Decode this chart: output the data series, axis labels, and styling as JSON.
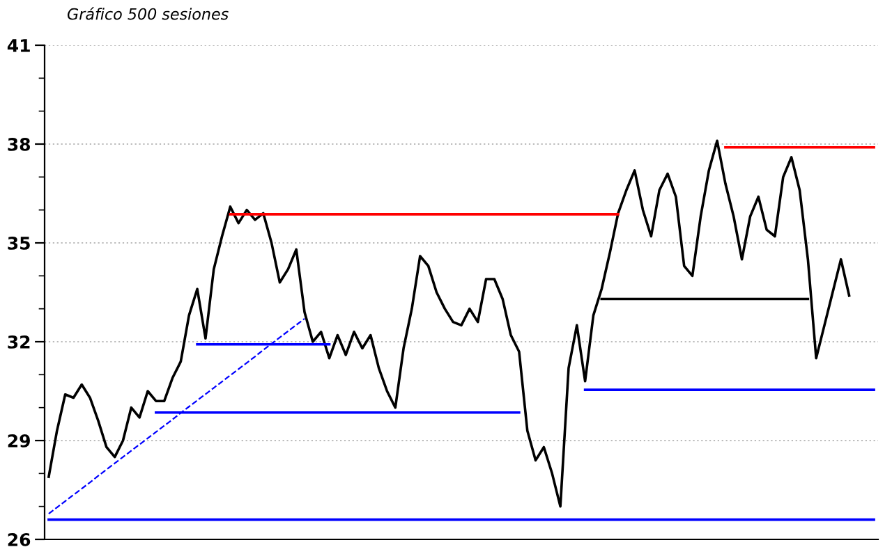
{
  "chart_data": {
    "type": "line",
    "title": "Gráfico 500 sesiones",
    "categories": [
      null,
      null,
      null,
      null,
      null,
      null,
      null,
      null,
      null,
      null,
      null,
      null,
      null,
      null,
      null,
      null,
      null,
      null,
      null,
      null,
      null,
      null,
      null,
      null,
      null,
      null,
      null,
      null,
      null,
      null,
      null,
      null,
      null,
      null,
      null,
      null,
      null,
      null,
      null,
      null,
      null,
      null,
      null,
      null,
      null,
      null,
      null,
      null,
      null,
      null,
      null,
      null,
      null,
      null,
      null,
      null,
      null,
      null,
      null,
      null,
      null,
      null,
      null,
      null,
      null,
      null,
      null,
      null,
      null,
      null,
      null,
      null,
      null,
      null,
      null,
      null,
      null,
      null,
      null,
      null,
      null,
      null,
      null,
      null,
      null,
      null,
      null,
      null,
      null,
      null,
      null,
      null,
      null,
      null,
      null,
      null,
      null,
      null,
      null,
      null,
      null
    ],
    "series": [
      {
        "color": "#000000",
        "values": [
          27.9,
          29.3,
          30.4,
          30.3,
          30.7,
          30.3,
          29.6,
          28.8,
          28.5,
          29.0,
          30.0,
          29.7,
          30.5,
          30.2,
          30.2,
          30.9,
          31.4,
          32.8,
          33.6,
          32.1,
          34.2,
          35.2,
          36.1,
          35.6,
          36.0,
          35.7,
          35.9,
          35.0,
          33.8,
          34.2,
          34.8,
          32.9,
          32.0,
          32.3,
          31.5,
          32.2,
          31.6,
          32.3,
          31.8,
          32.2,
          31.2,
          30.5,
          30.0,
          31.8,
          33.0,
          34.6,
          34.3,
          33.5,
          33.0,
          32.6,
          32.5,
          33.0,
          32.6,
          33.9,
          33.9,
          33.3,
          32.2,
          31.7,
          29.3,
          28.4,
          28.8,
          28.0,
          27.0,
          31.2,
          32.5,
          30.8,
          32.8,
          33.6,
          34.7,
          35.9,
          36.6,
          37.2,
          36.0,
          35.2,
          36.6,
          37.1,
          36.4,
          34.3,
          34.0,
          35.8,
          37.2,
          38.1,
          36.8,
          35.8,
          34.5,
          35.8,
          36.4,
          35.4,
          35.2,
          37.0,
          37.6,
          36.6,
          34.5,
          31.5,
          32.5,
          33.5,
          34.5,
          33.4,
          null,
          null,
          null
        ]
      },
      {
        "color": "#ff0000",
        "values": [
          null,
          null,
          null,
          null,
          null,
          null,
          null,
          null,
          null,
          null,
          null,
          null,
          null,
          null,
          null,
          null,
          null,
          null,
          null,
          null,
          null,
          null,
          35.87,
          35.87,
          35.87,
          35.87,
          35.87,
          35.87,
          35.87,
          35.87,
          35.87,
          35.87,
          35.87,
          35.87,
          35.87,
          35.87,
          35.87,
          35.87,
          35.87,
          35.87,
          35.87,
          35.87,
          35.87,
          35.87,
          35.87,
          35.87,
          35.87,
          35.87,
          35.87,
          35.87,
          35.87,
          35.87,
          35.87,
          35.87,
          35.87,
          35.87,
          35.87,
          35.87,
          35.87,
          35.87,
          35.87,
          35.87,
          35.87,
          35.87,
          35.87,
          35.87,
          35.87,
          35.87,
          35.87,
          35.87,
          null,
          null,
          null,
          null,
          null,
          null,
          null,
          null,
          null,
          null,
          null,
          null,
          null,
          null,
          null,
          null,
          null,
          null,
          null,
          null,
          null,
          null,
          null,
          null,
          null,
          null,
          null,
          null,
          null,
          null,
          null
        ]
      },
      {
        "color": "#ff0000",
        "values": [
          null,
          null,
          null,
          null,
          null,
          null,
          null,
          null,
          null,
          null,
          null,
          null,
          null,
          null,
          null,
          null,
          null,
          null,
          null,
          null,
          null,
          null,
          null,
          null,
          null,
          null,
          null,
          null,
          null,
          null,
          null,
          null,
          null,
          null,
          null,
          null,
          null,
          null,
          null,
          null,
          null,
          null,
          null,
          null,
          null,
          null,
          null,
          null,
          null,
          null,
          null,
          null,
          null,
          null,
          null,
          null,
          null,
          null,
          null,
          null,
          null,
          null,
          null,
          null,
          null,
          null,
          null,
          null,
          null,
          null,
          null,
          null,
          null,
          null,
          null,
          null,
          null,
          null,
          null,
          null,
          null,
          null,
          37.9,
          37.9,
          37.9,
          37.9,
          37.9,
          37.9,
          37.9,
          37.9,
          37.9,
          37.9,
          37.9,
          37.9,
          37.9,
          37.9,
          37.9,
          37.9,
          37.9,
          37.9,
          37.9
        ]
      },
      {
        "color": "#000000",
        "values": [
          null,
          null,
          null,
          null,
          null,
          null,
          null,
          null,
          null,
          null,
          null,
          null,
          null,
          null,
          null,
          null,
          null,
          null,
          null,
          null,
          null,
          null,
          null,
          null,
          null,
          null,
          null,
          null,
          null,
          null,
          null,
          null,
          null,
          null,
          null,
          null,
          null,
          null,
          null,
          null,
          null,
          null,
          null,
          null,
          null,
          null,
          null,
          null,
          null,
          null,
          null,
          null,
          null,
          null,
          null,
          null,
          null,
          null,
          null,
          null,
          null,
          null,
          null,
          null,
          null,
          null,
          null,
          33.3,
          33.3,
          33.3,
          33.3,
          33.3,
          33.3,
          33.3,
          33.3,
          33.3,
          33.3,
          33.3,
          33.3,
          33.3,
          33.3,
          33.3,
          33.3,
          33.3,
          33.3,
          33.3,
          33.3,
          33.3,
          33.3,
          33.3,
          33.3,
          33.3,
          33.3,
          null,
          null,
          null,
          null,
          null,
          null,
          null,
          null
        ]
      },
      {
        "color": "#0000ff",
        "values": [
          null,
          null,
          null,
          null,
          null,
          null,
          null,
          null,
          null,
          null,
          null,
          null,
          null,
          null,
          null,
          null,
          null,
          null,
          31.92,
          31.92,
          31.92,
          31.92,
          31.92,
          31.92,
          31.92,
          31.92,
          31.92,
          31.92,
          31.92,
          31.92,
          31.92,
          31.92,
          31.92,
          31.92,
          31.92,
          null,
          null,
          null,
          null,
          null,
          null,
          null,
          null,
          null,
          null,
          null,
          null,
          null,
          null,
          null,
          null,
          null,
          null,
          null,
          null,
          null,
          null,
          null,
          null,
          null,
          null,
          null,
          null,
          null,
          null,
          null,
          null,
          null,
          null,
          null,
          null,
          null,
          null,
          null,
          null,
          null,
          null,
          null,
          null,
          null,
          null,
          null,
          null,
          null,
          null,
          null,
          null,
          null,
          null,
          null,
          null,
          null,
          null,
          null,
          null,
          null,
          null,
          null,
          null,
          null,
          null
        ]
      },
      {
        "color": "#0000ff",
        "values": [
          null,
          null,
          null,
          null,
          null,
          null,
          null,
          null,
          null,
          null,
          null,
          null,
          null,
          29.85,
          29.85,
          29.85,
          29.85,
          29.85,
          29.85,
          29.85,
          29.85,
          29.85,
          29.85,
          29.85,
          29.85,
          29.85,
          29.85,
          29.85,
          29.85,
          29.85,
          29.85,
          29.85,
          29.85,
          29.85,
          29.85,
          29.85,
          29.85,
          29.85,
          29.85,
          29.85,
          29.85,
          29.85,
          29.85,
          29.85,
          29.85,
          29.85,
          29.85,
          29.85,
          29.85,
          29.85,
          29.85,
          29.85,
          29.85,
          29.85,
          29.85,
          29.85,
          29.85,
          29.85,
          null,
          null,
          null,
          null,
          null,
          null,
          null,
          null,
          null,
          null,
          null,
          null,
          null,
          null,
          null,
          null,
          null,
          null,
          null,
          null,
          null,
          null,
          null,
          null,
          null,
          null,
          null,
          null,
          null,
          null,
          null,
          null,
          null,
          null,
          null,
          null,
          null,
          null,
          null,
          null,
          null,
          null,
          null
        ]
      },
      {
        "color": "#0000ff",
        "values": [
          null,
          null,
          null,
          null,
          null,
          null,
          null,
          null,
          null,
          null,
          null,
          null,
          null,
          null,
          null,
          null,
          null,
          null,
          null,
          null,
          null,
          null,
          null,
          null,
          null,
          null,
          null,
          null,
          null,
          null,
          null,
          null,
          null,
          null,
          null,
          null,
          null,
          null,
          null,
          null,
          null,
          null,
          null,
          null,
          null,
          null,
          null,
          null,
          null,
          null,
          null,
          null,
          null,
          null,
          null,
          null,
          null,
          null,
          null,
          null,
          null,
          null,
          null,
          null,
          null,
          30.54,
          30.54,
          30.54,
          30.54,
          30.54,
          30.54,
          30.54,
          30.54,
          30.54,
          30.54,
          30.54,
          30.54,
          30.54,
          30.54,
          30.54,
          30.54,
          30.54,
          30.54,
          30.54,
          30.54,
          30.54,
          30.54,
          30.54,
          30.54,
          30.54,
          30.54,
          30.54,
          30.54,
          30.54,
          30.54,
          30.54,
          30.54,
          30.54,
          30.54,
          30.54,
          30.54
        ]
      },
      {
        "color": "#0000ff",
        "values": [
          26.6,
          26.6,
          26.6,
          26.6,
          26.6,
          26.6,
          26.6,
          26.6,
          26.6,
          26.6,
          26.6,
          26.6,
          26.6,
          26.6,
          26.6,
          26.6,
          26.6,
          26.6,
          26.6,
          26.6,
          26.6,
          26.6,
          26.6,
          26.6,
          26.6,
          26.6,
          26.6,
          26.6,
          26.6,
          26.6,
          26.6,
          26.6,
          26.6,
          26.6,
          26.6,
          26.6,
          26.6,
          26.6,
          26.6,
          26.6,
          26.6,
          26.6,
          26.6,
          26.6,
          26.6,
          26.6,
          26.6,
          26.6,
          26.6,
          26.6,
          26.6,
          26.6,
          26.6,
          26.6,
          26.6,
          26.6,
          26.6,
          26.6,
          26.6,
          26.6,
          26.6,
          26.6,
          26.6,
          26.6,
          26.6,
          26.6,
          26.6,
          26.6,
          26.6,
          26.6,
          26.6,
          26.6,
          26.6,
          26.6,
          26.6,
          26.6,
          26.6,
          26.6,
          26.6,
          26.6,
          26.6,
          26.6,
          26.6,
          26.6,
          26.6,
          26.6,
          26.6,
          26.6,
          26.6,
          26.6,
          26.6,
          26.6,
          26.6,
          26.6,
          26.6,
          26.6,
          26.6,
          26.6,
          26.6,
          26.6,
          26.6
        ]
      },
      {
        "color": "#0000ff",
        "line_style": "dashed",
        "values": [
          26.78,
          26.97,
          27.16,
          27.35,
          27.54,
          27.73,
          27.93,
          28.12,
          28.31,
          28.5,
          28.69,
          28.88,
          29.07,
          29.26,
          29.45,
          29.64,
          29.84,
          30.03,
          30.22,
          30.41,
          30.6,
          30.79,
          30.98,
          31.17,
          31.36,
          31.55,
          31.75,
          31.94,
          32.13,
          32.32,
          32.51,
          32.7,
          null,
          null,
          null,
          null,
          null,
          null,
          null,
          null,
          null,
          null,
          null,
          null,
          null,
          null,
          null,
          null,
          null,
          null,
          null,
          null,
          null,
          null,
          null,
          null,
          null,
          null,
          null,
          null,
          null,
          null,
          null,
          null,
          null,
          null,
          null,
          null,
          null,
          null,
          null,
          null,
          null,
          null,
          null,
          null,
          null,
          null,
          null,
          null,
          null,
          null,
          null,
          null,
          null,
          null,
          null,
          null,
          null,
          null,
          null,
          null,
          null,
          null,
          null,
          null,
          null,
          null,
          null,
          null,
          null
        ]
      }
    ],
    "ylim": [
      26,
      41
    ],
    "yticks": [
      26,
      29,
      32,
      35,
      38,
      41
    ],
    "grid": "y",
    "tick_labels": "y"
  }
}
